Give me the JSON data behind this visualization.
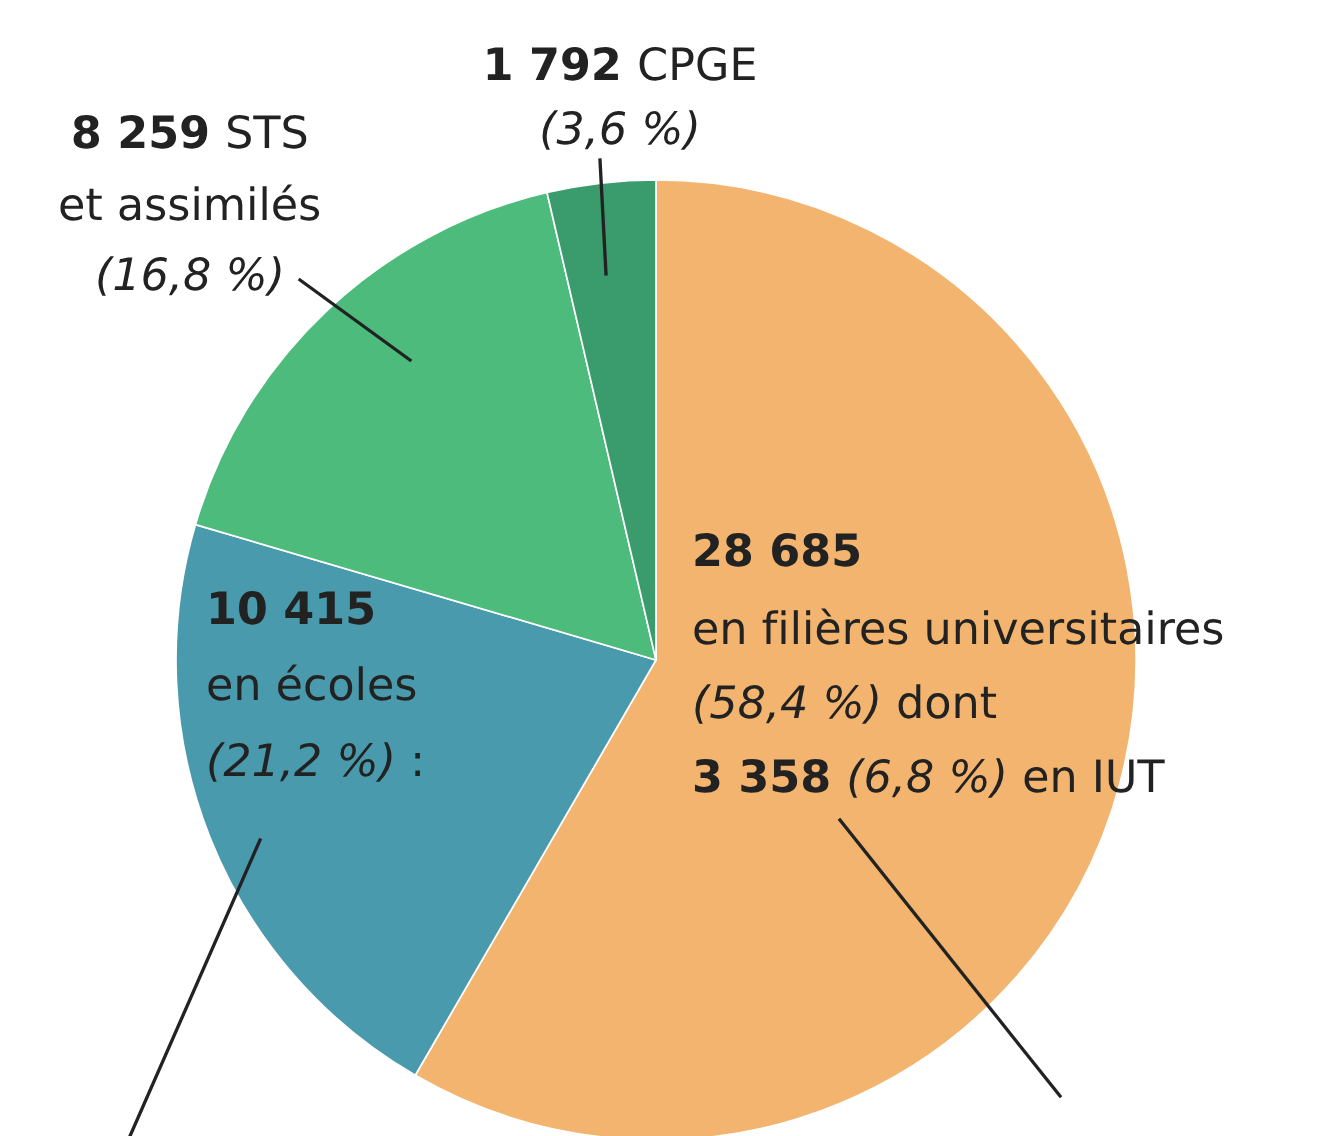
{
  "chart_data": {
    "type": "pie",
    "categories": [
      "en filières universitaires",
      "en écoles",
      "STS et assimilés",
      "CPGE"
    ],
    "values": [
      28685,
      10415,
      8259,
      1792
    ],
    "value_labels": [
      "28 685",
      "10 415",
      "8 259",
      "1 792"
    ],
    "colors": [
      "#f2b46e",
      "#4a9aad",
      "#4cbb7b",
      "#3a9b6c"
    ],
    "annotations": [
      "(58,4 %) dont",
      "3 358 (6,8 %) en IUT",
      "(21,2 %) :",
      "(16,8 %)",
      "(3,6 %)"
    ],
    "legend": false
  }
}
